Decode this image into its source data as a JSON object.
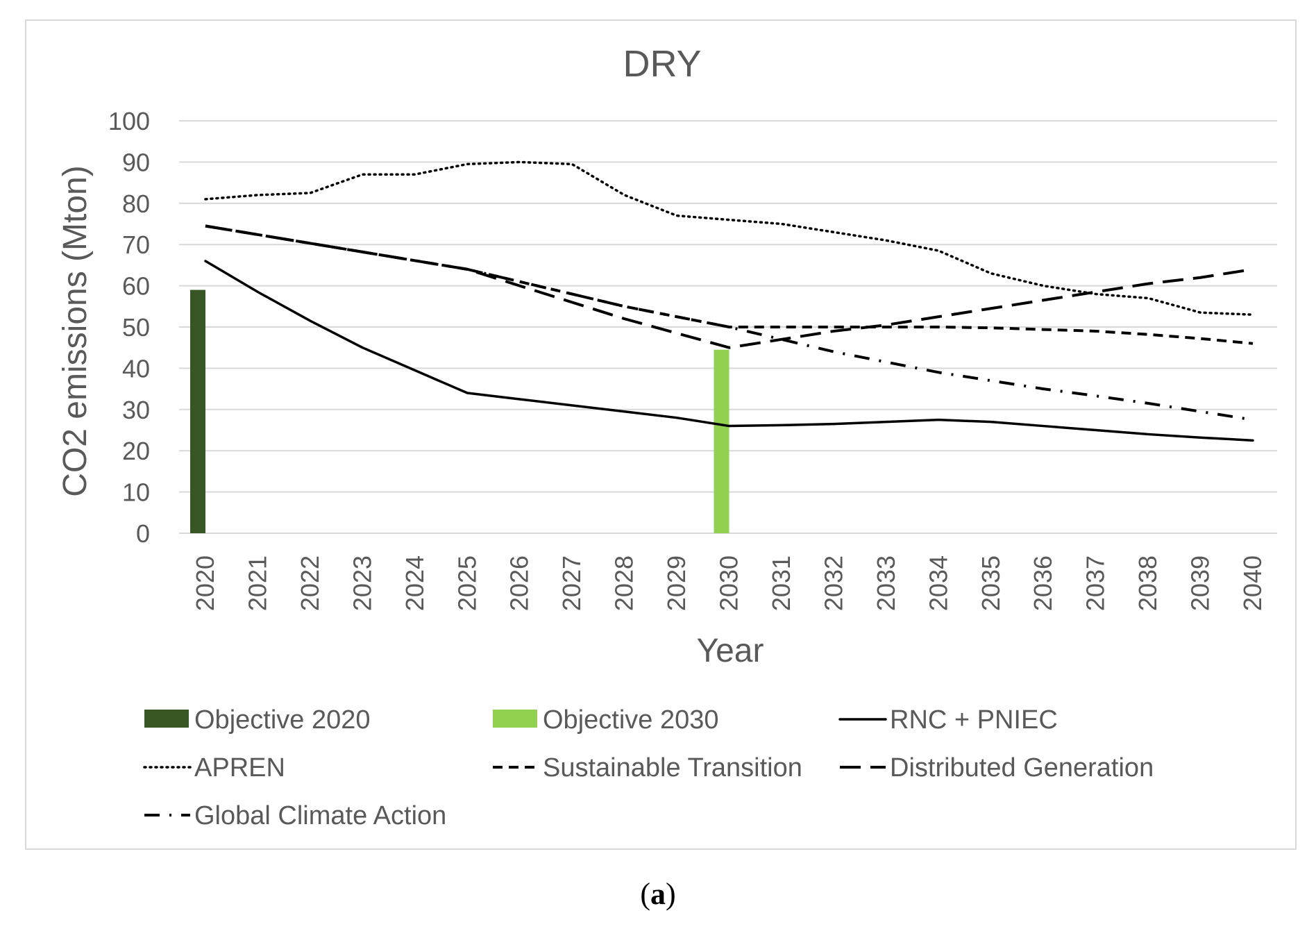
{
  "chart_data": {
    "type": "line",
    "title": "DRY",
    "xlabel": "Year",
    "ylabel": "CO2 emissions (Mton)",
    "ylim": [
      0,
      100
    ],
    "yticks": [
      "0",
      "10",
      "20",
      "30",
      "40",
      "50",
      "60",
      "70",
      "80",
      "90",
      "100"
    ],
    "grid": true,
    "legend_position": "bottom",
    "categories": [
      "2020",
      "2021",
      "2022",
      "2023",
      "2024",
      "2025",
      "2026",
      "2027",
      "2028",
      "2029",
      "2030",
      "2031",
      "2032",
      "2033",
      "2034",
      "2035",
      "2036",
      "2037",
      "2038",
      "2039",
      "2040"
    ],
    "bars": [
      {
        "name": "Objective 2020",
        "category": "2020",
        "value": 59,
        "color": "#375623"
      },
      {
        "name": "Objective 2030",
        "category": "2030",
        "value": 44.5,
        "color": "#92d050"
      }
    ],
    "series": [
      {
        "name": "RNC + PNIEC",
        "style": "solid",
        "color": "#000000",
        "values": [
          66,
          58.5,
          51.5,
          45,
          39.5,
          34,
          32.5,
          31,
          29.5,
          28,
          26,
          26.2,
          26.5,
          27,
          27.5,
          27,
          26,
          25,
          24,
          23.2,
          22.5
        ]
      },
      {
        "name": "APREN",
        "style": "dotted",
        "color": "#000000",
        "values": [
          81,
          82,
          82.5,
          87,
          87,
          89.5,
          90,
          89.5,
          82,
          77,
          76,
          75,
          73,
          71,
          68.5,
          63,
          60,
          58,
          57,
          53.5,
          53
        ]
      },
      {
        "name": "Sustainable Transition",
        "style": "dashed",
        "color": "#000000",
        "values": [
          74.5,
          72.4,
          70.3,
          68.2,
          66.1,
          64,
          61,
          58,
          55,
          52.5,
          50,
          50,
          50,
          50,
          50,
          49.8,
          49.4,
          49,
          48.2,
          47.2,
          46
        ]
      },
      {
        "name": "Distributed Generation",
        "style": "longdash",
        "color": "#000000",
        "values": [
          74.5,
          72.4,
          70.3,
          68.2,
          66.1,
          64,
          60,
          56,
          52,
          48.5,
          45,
          47,
          49,
          50.5,
          52.5,
          54.5,
          56.5,
          58.5,
          60.5,
          62,
          64
        ]
      },
      {
        "name": "Global Climate Action",
        "style": "dashdot",
        "color": "#000000",
        "values": [
          74.5,
          72.4,
          70.3,
          68.2,
          66.1,
          64,
          61,
          58,
          55,
          52.5,
          50,
          47,
          44,
          41.5,
          39,
          37,
          35,
          33.3,
          31.5,
          29.5,
          27.5
        ]
      }
    ],
    "legend": [
      {
        "label": "Objective 2020",
        "kind": "bar",
        "color": "#375623"
      },
      {
        "label": "Objective 2030",
        "kind": "bar",
        "color": "#92d050"
      },
      {
        "label": "RNC + PNIEC",
        "kind": "solid"
      },
      {
        "label": "APREN",
        "kind": "dotted"
      },
      {
        "label": "Sustainable Transition",
        "kind": "dashed"
      },
      {
        "label": "Distributed Generation",
        "kind": "longdash"
      },
      {
        "label": "Global Climate Action",
        "kind": "dashdot"
      }
    ]
  },
  "caption": {
    "open": "(",
    "letter": "a",
    "close": ")"
  }
}
